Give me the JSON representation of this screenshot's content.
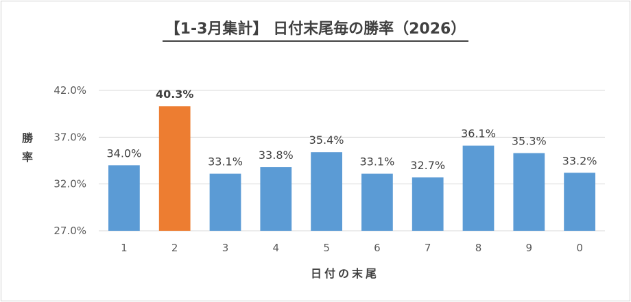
{
  "chart_data": {
    "type": "bar",
    "title": "【1-3月集計】 日付末尾毎の勝率（2026）",
    "xlabel": "日付の末尾",
    "ylabel": "勝率",
    "categories": [
      "1",
      "2",
      "3",
      "4",
      "5",
      "6",
      "7",
      "8",
      "9",
      "0"
    ],
    "values": [
      34.0,
      40.3,
      33.1,
      33.8,
      35.4,
      33.1,
      32.7,
      36.1,
      35.3,
      33.2
    ],
    "value_labels": [
      "34.0%",
      "40.3%",
      "33.1%",
      "33.8%",
      "35.4%",
      "33.1%",
      "32.7%",
      "36.1%",
      "35.3%",
      "33.2%"
    ],
    "ylim": [
      27.0,
      42.0
    ],
    "yticks": [
      27.0,
      32.0,
      37.0,
      42.0
    ],
    "ytick_labels": [
      "27.0%",
      "32.0%",
      "37.0%",
      "42.0%"
    ],
    "grid": true,
    "highlight_index": 1,
    "colors": {
      "bar": "#5b9bd5",
      "highlight": "#ed7d31",
      "grid": "#d9d9d9"
    }
  }
}
